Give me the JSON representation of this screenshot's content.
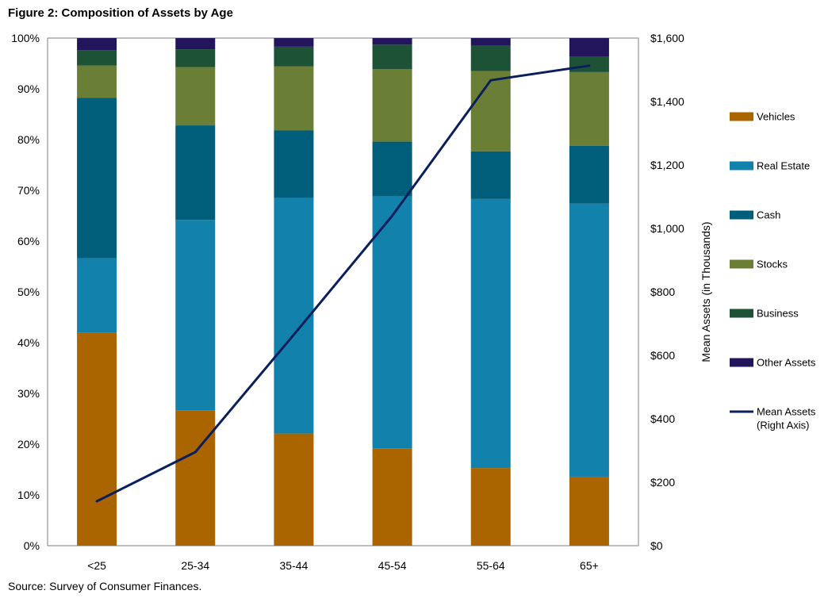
{
  "chart_data": {
    "type": "bar",
    "stacked": true,
    "title": "Figure 2: Composition of Assets by Age",
    "source": "Source: Survey of Consumer Finances.",
    "categories": [
      "<25",
      "25-34",
      "35-44",
      "45-54",
      "55-64",
      "65+"
    ],
    "ylim": [
      0,
      100
    ],
    "yticks": [
      "0%",
      "10%",
      "20%",
      "30%",
      "40%",
      "50%",
      "60%",
      "70%",
      "80%",
      "90%",
      "100%"
    ],
    "y2label": "Mean Assets (in Thousands)",
    "y2lim": [
      0,
      1600
    ],
    "y2ticks": [
      "$0",
      "$200",
      "$400",
      "$600",
      "$800",
      "$1,000",
      "$1,200",
      "$1,400",
      "$1,600"
    ],
    "legend_position": "right",
    "series": [
      {
        "name": "Vehicles",
        "color": "#AA6500",
        "values": [
          41.9,
          26.6,
          22.1,
          19.2,
          15.3,
          13.6
        ]
      },
      {
        "name": "Real Estate",
        "color": "#1282AD",
        "values": [
          14.7,
          37.6,
          46.4,
          49.6,
          53.0,
          53.8
        ]
      },
      {
        "name": "Cash",
        "color": "#005E7A",
        "values": [
          31.6,
          18.6,
          13.3,
          10.8,
          9.4,
          11.4
        ]
      },
      {
        "name": "Stocks",
        "color": "#6B7E35",
        "values": [
          6.4,
          11.5,
          12.6,
          14.3,
          15.8,
          14.5
        ]
      },
      {
        "name": "Business",
        "color": "#1D5236",
        "values": [
          3.0,
          3.5,
          3.9,
          4.8,
          5.0,
          3.0
        ]
      },
      {
        "name": "Other Assets",
        "color": "#23155C",
        "values": [
          2.4,
          2.2,
          1.7,
          1.3,
          1.5,
          3.7
        ]
      }
    ],
    "line_series": {
      "name": "Mean Assets (Right Axis)",
      "legend_lines": [
        "Mean Assets",
        "(Right Axis)"
      ],
      "axis": "right",
      "color": "#0B1F5C",
      "values": [
        140,
        295,
        665,
        1040,
        1467,
        1513
      ]
    }
  }
}
